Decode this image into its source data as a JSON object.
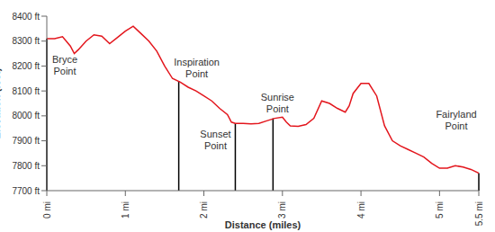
{
  "chart_data": {
    "type": "line",
    "x_label": "Distance (miles)",
    "y_label": "Elevation (feet)",
    "color": "#e3161d",
    "grid": false,
    "x": [
      0,
      0.1,
      0.2,
      0.3,
      0.35,
      0.4,
      0.5,
      0.6,
      0.7,
      0.8,
      0.9,
      1.0,
      1.1,
      1.2,
      1.3,
      1.4,
      1.5,
      1.6,
      1.7,
      1.8,
      1.9,
      2.0,
      2.1,
      2.2,
      2.3,
      2.35,
      2.4,
      2.5,
      2.6,
      2.7,
      2.8,
      2.9,
      3.0,
      3.05,
      3.1,
      3.2,
      3.3,
      3.4,
      3.5,
      3.6,
      3.7,
      3.8,
      3.85,
      3.9,
      4.0,
      4.1,
      4.2,
      4.3,
      4.4,
      4.5,
      4.6,
      4.7,
      4.8,
      4.9,
      5.0,
      5.1,
      5.2,
      5.3,
      5.4,
      5.5
    ],
    "values": [
      8310,
      8310,
      8318,
      8280,
      8250,
      8265,
      8300,
      8325,
      8320,
      8290,
      8315,
      8340,
      8360,
      8330,
      8300,
      8260,
      8200,
      8150,
      8135,
      8115,
      8100,
      8080,
      8060,
      8030,
      8005,
      7975,
      7970,
      7970,
      7968,
      7970,
      7980,
      7990,
      7995,
      7975,
      7960,
      7958,
      7965,
      7990,
      8060,
      8050,
      8030,
      8015,
      8040,
      8090,
      8130,
      8130,
      8080,
      7960,
      7900,
      7880,
      7865,
      7850,
      7835,
      7810,
      7790,
      7790,
      7800,
      7795,
      7785,
      7770
    ],
    "xlim": [
      0,
      5.5
    ],
    "xticks": [
      {
        "value": 0,
        "label": "0 mi"
      },
      {
        "value": 1,
        "label": "1 mi"
      },
      {
        "value": 2,
        "label": "2 mi"
      },
      {
        "value": 3,
        "label": "3 mi"
      },
      {
        "value": 4,
        "label": "4 mi"
      },
      {
        "value": 5,
        "label": "5 mi"
      },
      {
        "value": 5.5,
        "label": "5.5 mi"
      }
    ],
    "ylim": [
      7700,
      8400
    ],
    "yticks": [
      {
        "value": 7700,
        "label": "7700 ft"
      },
      {
        "value": 7800,
        "label": "7800 ft"
      },
      {
        "value": 7900,
        "label": "7900 ft"
      },
      {
        "value": 8000,
        "label": "8000 ft"
      },
      {
        "value": 8100,
        "label": "8100 ft"
      },
      {
        "value": 8200,
        "label": "8200 ft"
      },
      {
        "value": 8300,
        "label": "8300 ft"
      },
      {
        "value": 8400,
        "label": "8400 ft"
      }
    ],
    "annotations": [
      {
        "text": "Bryce Point",
        "x": 0,
        "y": 8310
      },
      {
        "text": "Inspiration Point",
        "x": 1.68,
        "y": 8140
      },
      {
        "text": "Sunset Point",
        "x": 2.4,
        "y": 7970
      },
      {
        "text": "Sunrise Point",
        "x": 2.88,
        "y": 7990
      },
      {
        "text": "Fairyland Point",
        "x": 5.5,
        "y": 7770
      }
    ]
  }
}
